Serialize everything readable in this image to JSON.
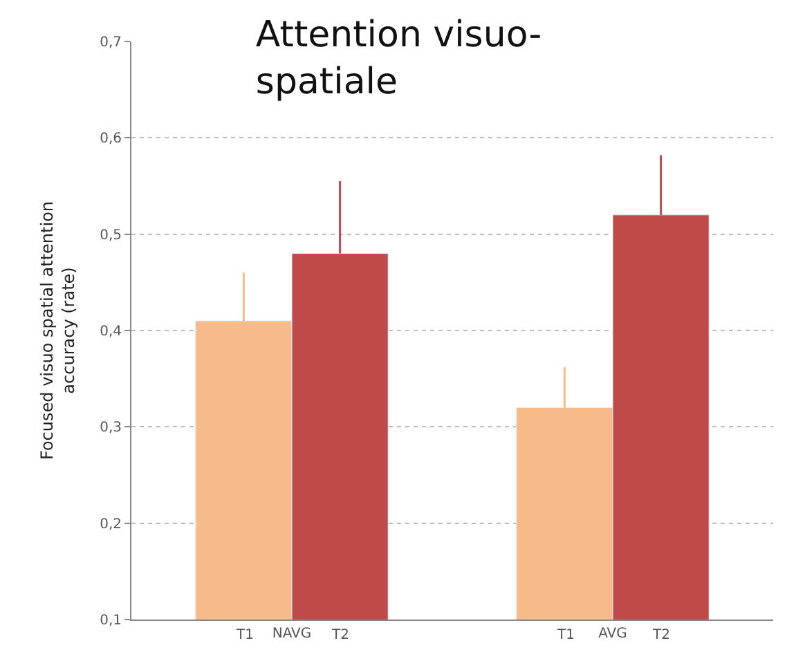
{
  "chart_data": {
    "type": "bar",
    "title": "Attention visuo-\nspatiale",
    "ylabel": "Focused visuo spatial attention\naccuracy (rate)",
    "categories": [
      "NAVG",
      "AVG"
    ],
    "series": [
      {
        "name": "T1",
        "color": "#f7bb8a",
        "values": [
          0.41,
          0.32
        ],
        "errors": [
          [
            0.41,
            0.46
          ],
          [
            0.32,
            0.362
          ]
        ]
      },
      {
        "name": "T2",
        "color": "#c0494a",
        "values": [
          0.48,
          0.52
        ],
        "errors": [
          [
            0.48,
            0.555
          ],
          [
            0.52,
            0.582
          ]
        ]
      }
    ],
    "ylim": [
      0.1,
      0.7
    ],
    "yticks": [
      {
        "value": 0.1,
        "label": "0,1"
      },
      {
        "value": 0.2,
        "label": "0,2"
      },
      {
        "value": 0.3,
        "label": "0,3"
      },
      {
        "value": 0.4,
        "label": "0,4"
      },
      {
        "value": 0.5,
        "label": "0,5"
      },
      {
        "value": 0.6,
        "label": "0,6"
      },
      {
        "value": 0.7,
        "label": "0,7"
      }
    ],
    "grid": "y",
    "legend": false
  }
}
